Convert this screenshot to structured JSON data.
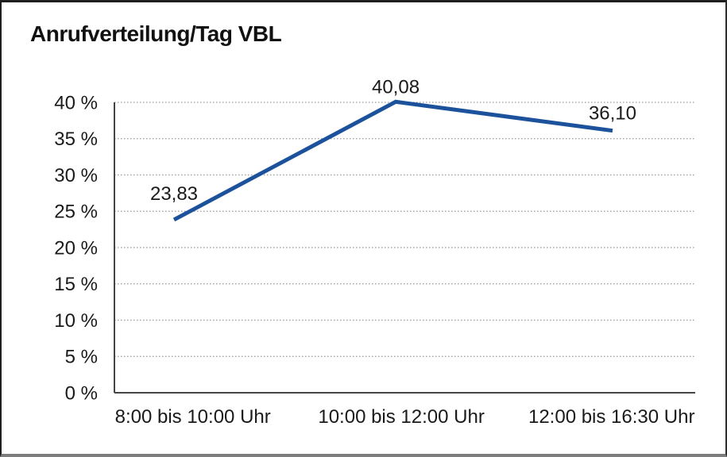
{
  "chart_data": {
    "type": "line",
    "title": "Anrufverteilung/Tag VBL",
    "categories": [
      "8:00 bis 10:00 Uhr",
      "10:00 bis 12:00 Uhr",
      "12:00 bis 16:30 Uhr"
    ],
    "values": [
      23.83,
      40.08,
      36.1
    ],
    "value_labels": [
      "23,83",
      "40,08",
      "36,10"
    ],
    "xlabel": "",
    "ylabel": "",
    "ylim": [
      0,
      40
    ],
    "ytick_step": 5,
    "ytick_suffix": " %",
    "grid": true,
    "gridline_style": "dotted",
    "legend_position": "none",
    "colors": {
      "line": "#1b529b",
      "grid": "#999999",
      "axis": "#454545",
      "text": "#1a1a1a"
    }
  }
}
